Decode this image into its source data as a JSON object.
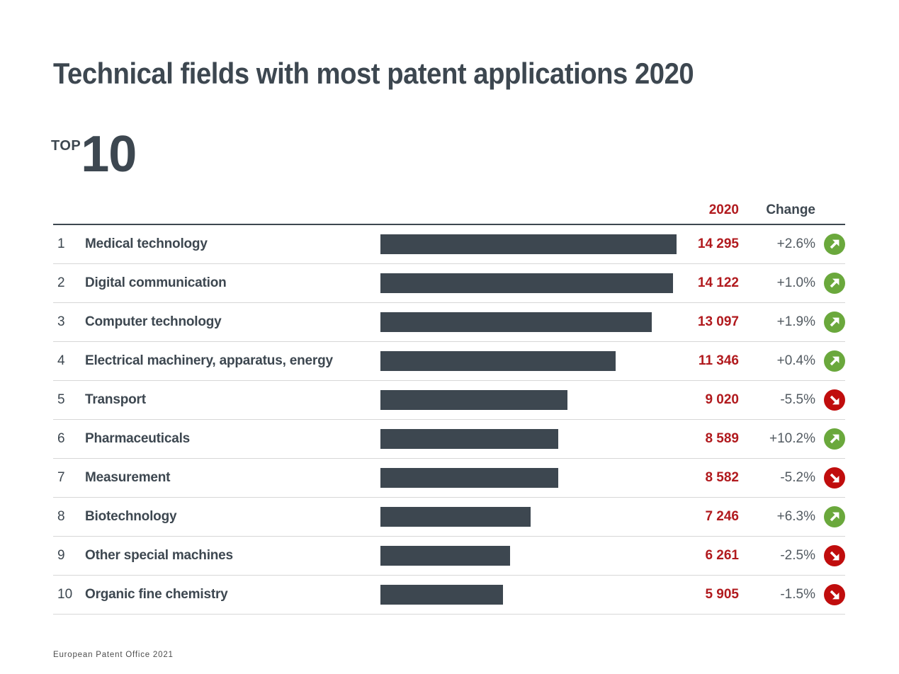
{
  "page": {
    "title": "Technical fields with most patent applications 2020",
    "top_label": "TOP",
    "top_number": "10",
    "footer": "European Patent Office 2021"
  },
  "table": {
    "headers": {
      "value": "2020",
      "change": "Change"
    },
    "rows": [
      {
        "rank": "1",
        "label": "Medical technology",
        "value": "14 295",
        "change": "+2.6%",
        "trend": "up"
      },
      {
        "rank": "2",
        "label": "Digital communication",
        "value": "14 122",
        "change": "+1.0%",
        "trend": "up"
      },
      {
        "rank": "3",
        "label": "Computer technology",
        "value": "13 097",
        "change": "+1.9%",
        "trend": "up"
      },
      {
        "rank": "4",
        "label": "Electrical machinery, apparatus, energy",
        "value": "11 346",
        "change": "+0.4%",
        "trend": "up"
      },
      {
        "rank": "5",
        "label": "Transport",
        "value": "9 020",
        "change": "-5.5%",
        "trend": "down"
      },
      {
        "rank": "6",
        "label": "Pharmaceuticals",
        "value": "8 589",
        "change": "+10.2%",
        "trend": "up"
      },
      {
        "rank": "7",
        "label": "Measurement",
        "value": "8 582",
        "change": "-5.2%",
        "trend": "down"
      },
      {
        "rank": "8",
        "label": "Biotechnology",
        "value": "7 246",
        "change": "+6.3%",
        "trend": "up"
      },
      {
        "rank": "9",
        "label": "Other special machines",
        "value": "6 261",
        "change": "-2.5%",
        "trend": "down"
      },
      {
        "rank": "10",
        "label": "Organic fine chemistry",
        "value": "5 905",
        "change": "-1.5%",
        "trend": "down"
      }
    ]
  },
  "colors": {
    "slate": "#3d4750",
    "value_red": "#b11a1e",
    "trend_green": "#6aa83c",
    "trend_red": "#c00d0d",
    "change_text": "#525a61",
    "divider": "#d7d7d7"
  },
  "chart_data": {
    "type": "bar",
    "orientation": "horizontal",
    "title": "Technical fields with most patent applications 2020",
    "subtitle": "TOP 10",
    "categories": [
      "Medical technology",
      "Digital communication",
      "Computer technology",
      "Electrical machinery, apparatus, energy",
      "Transport",
      "Pharmaceuticals",
      "Measurement",
      "Biotechnology",
      "Other special machines",
      "Organic fine chemistry"
    ],
    "values": [
      14295,
      14122,
      13097,
      11346,
      9020,
      8589,
      8582,
      7246,
      6261,
      5905
    ],
    "series_label": "2020",
    "change_percent": [
      2.6,
      1.0,
      1.9,
      0.4,
      -5.5,
      10.2,
      -5.2,
      6.3,
      -2.5,
      -1.5
    ],
    "xlim": [
      0,
      14295
    ],
    "grid": false,
    "legend_position": "none",
    "source": "European Patent Office 2021"
  }
}
